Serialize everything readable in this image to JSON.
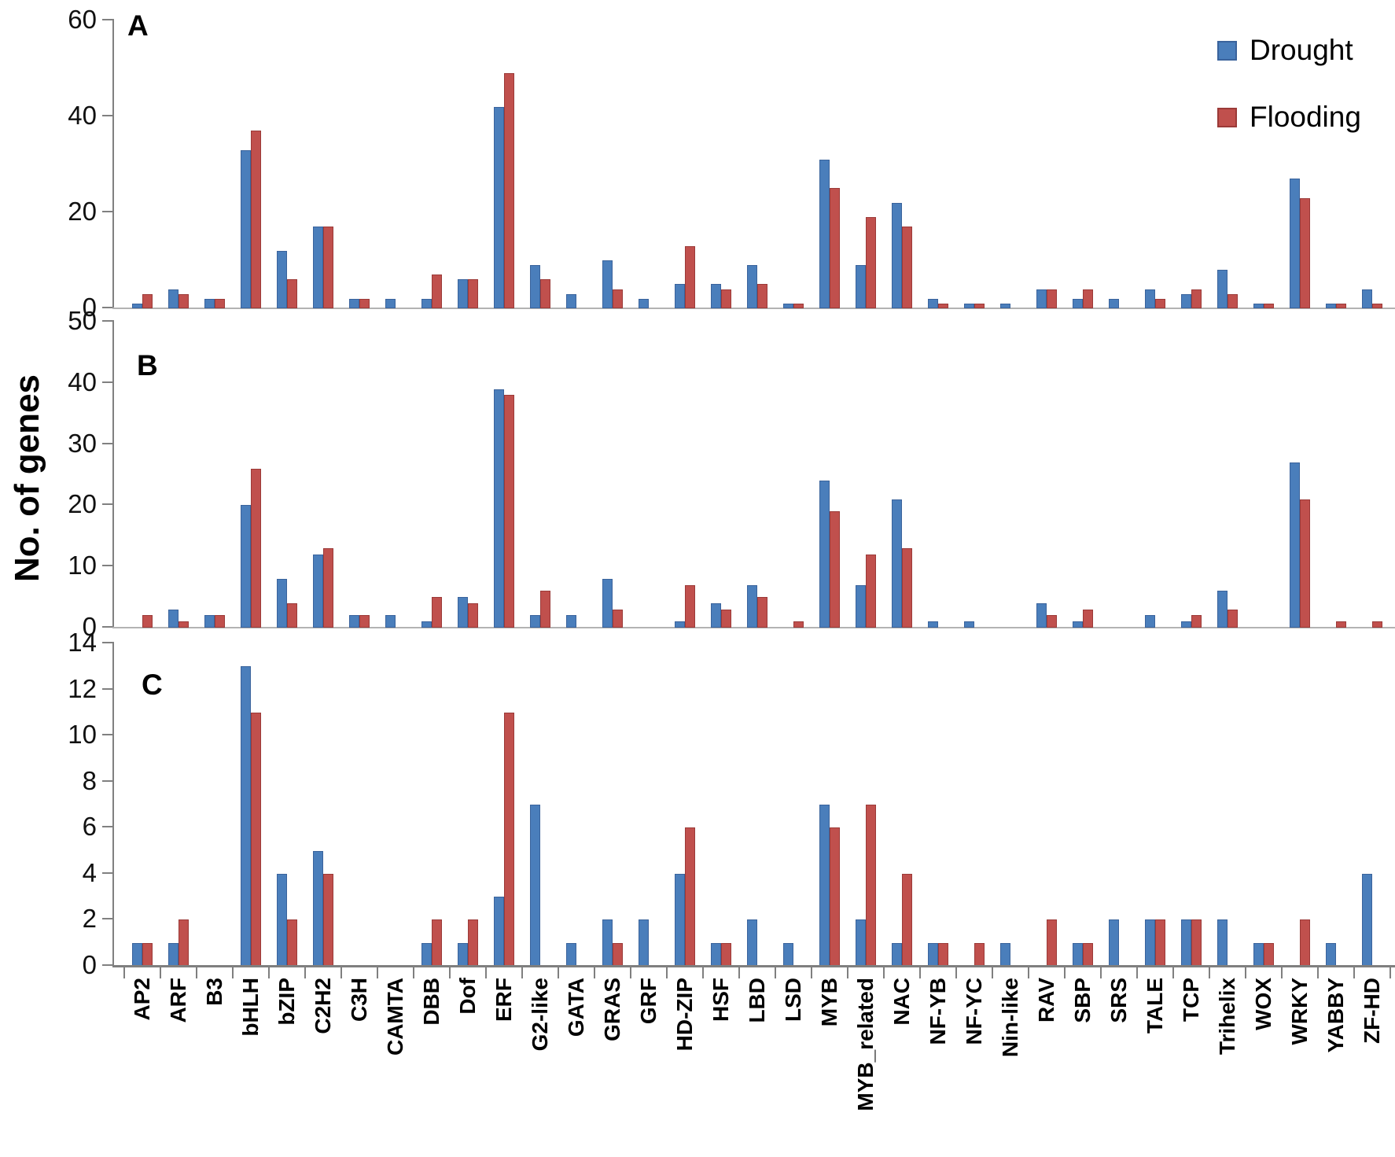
{
  "figure": {
    "ylabel": "No. of genes"
  },
  "legend": {
    "items": [
      {
        "label": "Drought",
        "color": "#4A7EBB",
        "border": "#3A639C"
      },
      {
        "label": "Flooding",
        "color": "#C0504D",
        "border": "#9B3A38"
      }
    ]
  },
  "chart_data": {
    "type": "bar",
    "title": "",
    "xlabel": "",
    "ylabel": "No. of genes",
    "grid": false,
    "legend_position": "top-right",
    "categories": [
      "AP2",
      "ARF",
      "B3",
      "bHLH",
      "bZIP",
      "C2H2",
      "C3H",
      "CAMTA",
      "DBB",
      "Dof",
      "ERF",
      "G2-like",
      "GATA",
      "GRAS",
      "GRF",
      "HD-ZIP",
      "HSF",
      "LBD",
      "LSD",
      "MYB",
      "MYB_related",
      "NAC",
      "NF-YB",
      "NF-YC",
      "Nin-like",
      "RAV",
      "SBP",
      "SRS",
      "TALE",
      "TCP",
      "Trihelix",
      "WOX",
      "WRKY",
      "YABBY",
      "ZF-HD"
    ],
    "panels": [
      {
        "label": "A",
        "ylim": [
          0,
          60
        ],
        "yticks": [
          60,
          40,
          20,
          0
        ],
        "series": [
          {
            "name": "Drought",
            "values": [
              1,
              4,
              2,
              33,
              12,
              17,
              2,
              2,
              2,
              6,
              42,
              9,
              3,
              10,
              2,
              5,
              5,
              9,
              1,
              31,
              9,
              22,
              2,
              1,
              1,
              4,
              2,
              2,
              4,
              3,
              8,
              1,
              27,
              1,
              4
            ]
          },
          {
            "name": "Flooding",
            "values": [
              3,
              3,
              2,
              37,
              6,
              17,
              2,
              0,
              7,
              6,
              49,
              6,
              0,
              4,
              0,
              13,
              4,
              5,
              1,
              25,
              19,
              17,
              1,
              1,
              0,
              4,
              4,
              0,
              2,
              4,
              3,
              1,
              23,
              1,
              1
            ]
          }
        ]
      },
      {
        "label": "B",
        "ylim": [
          0,
          50
        ],
        "yticks": [
          50,
          40,
          30,
          20,
          10,
          0
        ],
        "series": [
          {
            "name": "Drought",
            "values": [
              0,
              3,
              2,
              20,
              8,
              12,
              2,
              2,
              1,
              5,
              39,
              2,
              2,
              8,
              0,
              1,
              4,
              7,
              0,
              24,
              7,
              21,
              1,
              1,
              0,
              4,
              1,
              0,
              2,
              1,
              6,
              0,
              27,
              0,
              0
            ]
          },
          {
            "name": "Flooding",
            "values": [
              2,
              1,
              2,
              26,
              4,
              13,
              2,
              0,
              5,
              4,
              38,
              6,
              0,
              3,
              0,
              7,
              3,
              5,
              1,
              19,
              12,
              13,
              0,
              0,
              0,
              2,
              3,
              0,
              0,
              2,
              3,
              0,
              21,
              1,
              1
            ]
          }
        ]
      },
      {
        "label": "C",
        "ylim": [
          0,
          14
        ],
        "yticks": [
          14,
          12,
          10,
          8,
          6,
          4,
          2,
          0
        ],
        "series": [
          {
            "name": "Drought",
            "values": [
              1,
              1,
              0,
              13,
              4,
              5,
              0,
              0,
              1,
              1,
              3,
              7,
              1,
              2,
              2,
              4,
              1,
              2,
              1,
              7,
              2,
              1,
              1,
              0,
              1,
              0,
              1,
              2,
              2,
              2,
              2,
              1,
              0,
              1,
              4
            ]
          },
          {
            "name": "Flooding",
            "values": [
              1,
              2,
              0,
              11,
              2,
              4,
              0,
              0,
              2,
              2,
              11,
              0,
              0,
              1,
              0,
              6,
              1,
              0,
              0,
              6,
              7,
              4,
              1,
              1,
              0,
              2,
              1,
              0,
              2,
              2,
              0,
              1,
              2,
              0,
              0
            ]
          }
        ]
      }
    ]
  }
}
